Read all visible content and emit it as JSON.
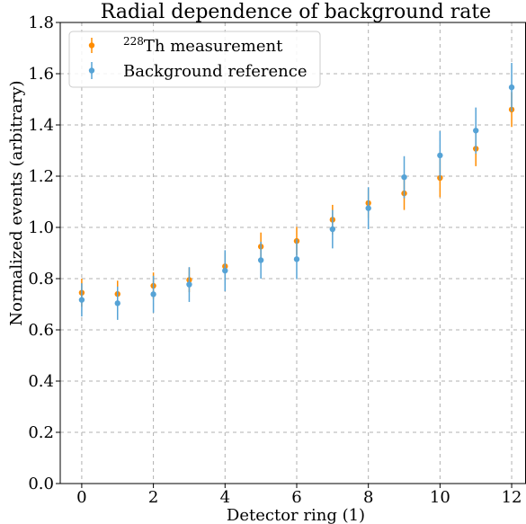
{
  "chart_data": {
    "type": "scatter",
    "title": "Radial dependence of background rate",
    "xlabel": "Detector ring (1)",
    "ylabel": "Normalized events (arbitrary)",
    "xlim": [
      -0.6,
      12.4
    ],
    "ylim": [
      0.0,
      1.8
    ],
    "xticks": [
      0,
      2,
      4,
      6,
      8,
      10,
      12
    ],
    "yticks": [
      0.0,
      0.2,
      0.4,
      0.6,
      0.8,
      1.0,
      1.2,
      1.4,
      1.6,
      1.8
    ],
    "xtick_labels": [
      "0",
      "2",
      "4",
      "6",
      "8",
      "10",
      "12"
    ],
    "ytick_labels": [
      "0.0",
      "0.2",
      "0.4",
      "0.6",
      "0.8",
      "1.0",
      "1.2",
      "1.4",
      "1.6",
      "1.8"
    ],
    "grid": true,
    "legend_position": "top-left",
    "series": [
      {
        "name_prefix": "228",
        "name_suffix": "Th measurement",
        "color": "#ff8c00",
        "x": [
          0,
          1,
          2,
          3,
          4,
          5,
          6,
          7,
          8,
          9,
          10,
          11,
          12
        ],
        "y": [
          0.745,
          0.74,
          0.772,
          0.795,
          0.848,
          0.925,
          0.947,
          1.03,
          1.095,
          1.133,
          1.193,
          1.307,
          1.46
        ],
        "yerr": [
          0.055,
          0.052,
          0.052,
          0.048,
          0.055,
          0.055,
          0.055,
          0.058,
          0.058,
          0.065,
          0.075,
          0.068,
          0.068
        ]
      },
      {
        "name": "Background reference",
        "color": "#56a3d6",
        "x": [
          0,
          1,
          2,
          3,
          4,
          5,
          6,
          7,
          8,
          9,
          10,
          11,
          12
        ],
        "y": [
          0.717,
          0.704,
          0.739,
          0.777,
          0.831,
          0.872,
          0.876,
          0.993,
          1.075,
          1.196,
          1.281,
          1.378,
          1.547
        ],
        "yerr": [
          0.065,
          0.065,
          0.072,
          0.068,
          0.08,
          0.072,
          0.078,
          0.075,
          0.082,
          0.082,
          0.095,
          0.09,
          0.095
        ]
      }
    ]
  }
}
